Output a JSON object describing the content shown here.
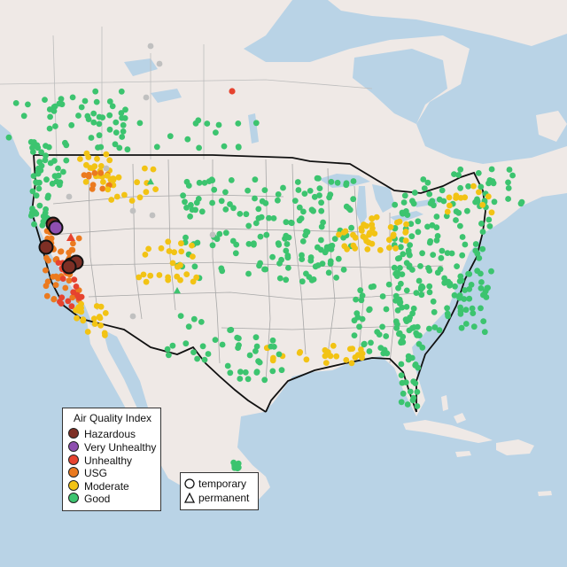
{
  "legend": {
    "title": "Air Quality Index",
    "categories": [
      {
        "label": "Hazardous",
        "color": "#7e2f25"
      },
      {
        "label": "Very Unhealthy",
        "color": "#8e4fb0"
      },
      {
        "label": "Unhealthy",
        "color": "#e6432f"
      },
      {
        "label": "USG",
        "color": "#eb7a1f"
      },
      {
        "label": "Moderate",
        "color": "#f2c314"
      },
      {
        "label": "Good",
        "color": "#3cc46f"
      }
    ],
    "no_data_color": "#c0c0c0"
  },
  "monitor_types": [
    {
      "label": "temporary",
      "icon": "circle-icon"
    },
    {
      "label": "permanent",
      "icon": "triangle-icon"
    }
  ],
  "colors": {
    "land": "#efe9e6",
    "water": "#b9d3e6",
    "us_border": "#111111",
    "boundaries": "#a7a7a7"
  }
}
